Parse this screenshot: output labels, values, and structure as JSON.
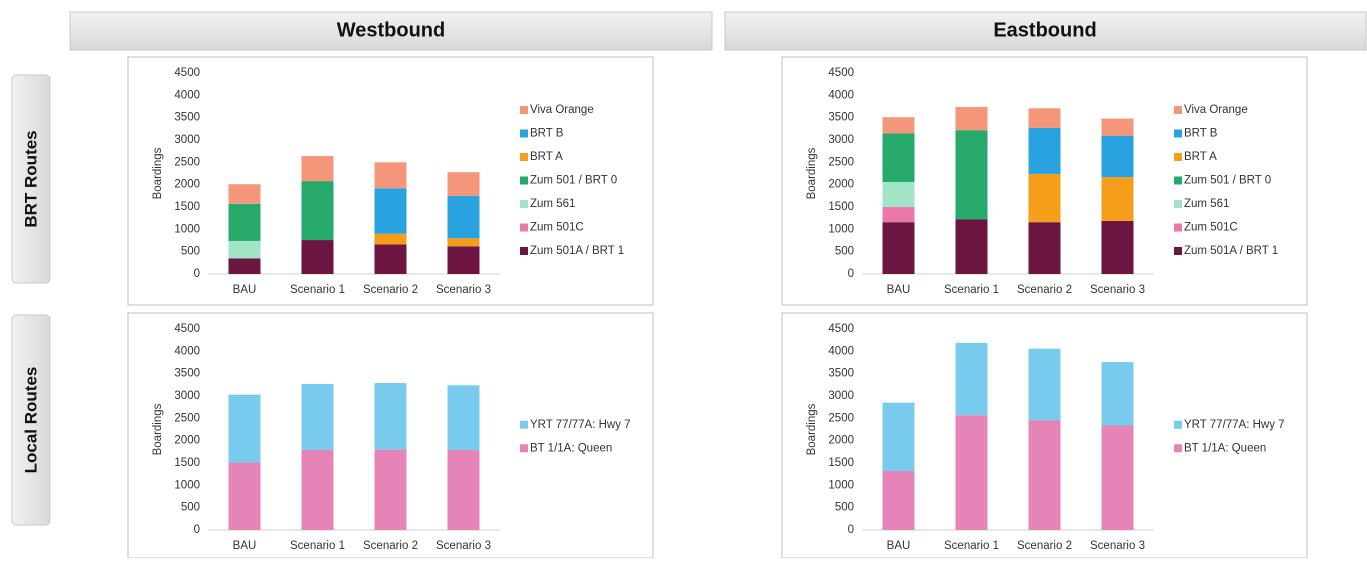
{
  "columns": [
    "Westbound",
    "Eastbound"
  ],
  "rows": [
    "BRT Routes",
    "Local Routes"
  ],
  "chart_data": [
    {
      "type": "stacked_bar",
      "ylabel": "Boardings",
      "categories": [
        "BAU",
        "Scenario 1",
        "Scenario 2",
        "Scenario 3"
      ],
      "ylim": [
        0,
        4500
      ],
      "yticks": [
        0,
        500,
        1000,
        1500,
        2000,
        2500,
        3000,
        3500,
        4000,
        4500
      ],
      "series": [
        {
          "name": "Viva Orange",
          "color": "#f4967a",
          "values": [
            440,
            560,
            580,
            530
          ]
        },
        {
          "name": "BRT B",
          "color": "#29a3e0",
          "values": [
            0,
            0,
            1020,
            950
          ]
        },
        {
          "name": "BRT A",
          "color": "#f59e1b",
          "values": [
            0,
            0,
            240,
            180
          ]
        },
        {
          "name": "Zum 501 / BRT 0",
          "color": "#27a96c",
          "values": [
            830,
            1320,
            0,
            0
          ]
        },
        {
          "name": "Zum 561",
          "color": "#a2e5c6",
          "values": [
            390,
            0,
            0,
            0
          ]
        },
        {
          "name": "Zum 501C",
          "color": "#e879a8",
          "values": [
            0,
            0,
            0,
            0
          ]
        },
        {
          "name": "Zum 501A / BRT 1",
          "color": "#6b1540",
          "values": [
            350,
            760,
            660,
            620
          ]
        }
      ]
    },
    {
      "type": "stacked_bar",
      "ylabel": "Boardings",
      "categories": [
        "BAU",
        "Scenario 1",
        "Scenario 2",
        "Scenario 3"
      ],
      "ylim": [
        0,
        4500
      ],
      "yticks": [
        0,
        500,
        1000,
        1500,
        2000,
        2500,
        3000,
        3500,
        4000,
        4500
      ],
      "series": [
        {
          "name": "Viva Orange",
          "color": "#f4967a",
          "values": [
            360,
            520,
            440,
            390
          ]
        },
        {
          "name": "BRT B",
          "color": "#29a3e0",
          "values": [
            0,
            0,
            1030,
            920
          ]
        },
        {
          "name": "BRT A",
          "color": "#f59e1b",
          "values": [
            0,
            0,
            1080,
            980
          ]
        },
        {
          "name": "Zum 501 / BRT 0",
          "color": "#27a96c",
          "values": [
            1090,
            2000,
            0,
            0
          ]
        },
        {
          "name": "Zum 561",
          "color": "#a2e5c6",
          "values": [
            560,
            0,
            0,
            0
          ]
        },
        {
          "name": "Zum 501C",
          "color": "#e879a8",
          "values": [
            340,
            0,
            0,
            0
          ]
        },
        {
          "name": "Zum 501A / BRT 1",
          "color": "#6b1540",
          "values": [
            1160,
            1220,
            1160,
            1190
          ]
        }
      ]
    },
    {
      "type": "stacked_bar",
      "ylabel": "Boardings",
      "categories": [
        "BAU",
        "Scenario 1",
        "Scenario 2",
        "Scenario 3"
      ],
      "ylim": [
        0,
        4500
      ],
      "yticks": [
        0,
        500,
        1000,
        1500,
        2000,
        2500,
        3000,
        3500,
        4000,
        4500
      ],
      "series": [
        {
          "name": "YRT 77/77A: Hwy 7",
          "color": "#78cbec",
          "values": [
            1520,
            1480,
            1490,
            1450
          ]
        },
        {
          "name": "BT 1/1A: Queen",
          "color": "#e584b6",
          "values": [
            1510,
            1790,
            1800,
            1790
          ]
        }
      ]
    },
    {
      "type": "stacked_bar",
      "ylabel": "Boardings",
      "categories": [
        "BAU",
        "Scenario 1",
        "Scenario 2",
        "Scenario 3"
      ],
      "ylim": [
        0,
        4500
      ],
      "yticks": [
        0,
        500,
        1000,
        1500,
        2000,
        2500,
        3000,
        3500,
        4000,
        4500
      ],
      "series": [
        {
          "name": "YRT 77/77A: Hwy 7",
          "color": "#78cbec",
          "values": [
            1530,
            1620,
            1600,
            1420
          ]
        },
        {
          "name": "BT 1/1A: Queen",
          "color": "#e584b6",
          "values": [
            1320,
            2570,
            2460,
            2340
          ]
        }
      ]
    }
  ]
}
